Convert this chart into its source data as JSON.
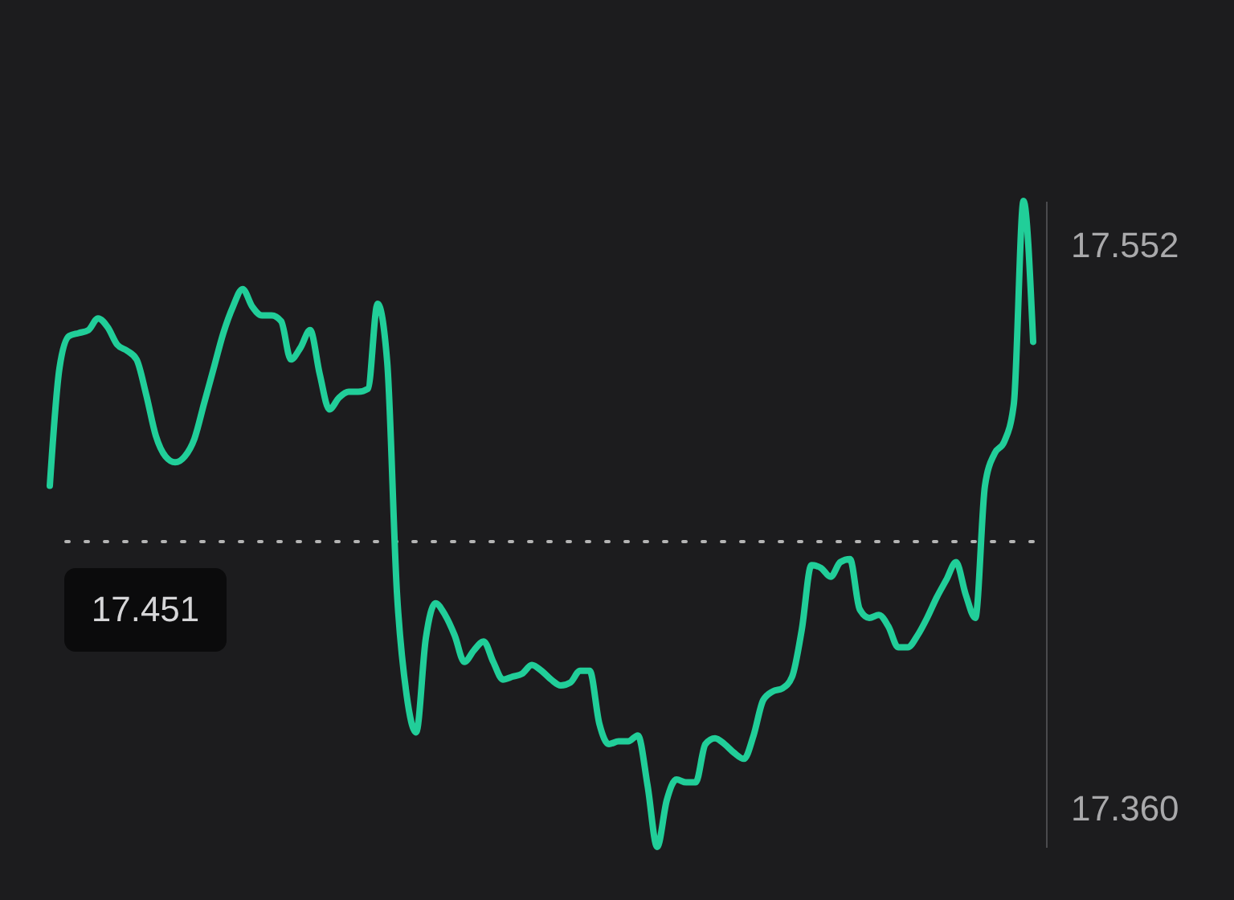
{
  "chart_data": {
    "type": "line",
    "categories": [
      null,
      null,
      null,
      null,
      null,
      null,
      null,
      null,
      null,
      null,
      null,
      null,
      null,
      null,
      null,
      null,
      null,
      null,
      null,
      null,
      null,
      null,
      null,
      null,
      null,
      null,
      null,
      null,
      null,
      null,
      null,
      null,
      null,
      null,
      null,
      null,
      null,
      null,
      null,
      null,
      null,
      null,
      null,
      null,
      null,
      null,
      null,
      null,
      null,
      null,
      null,
      null,
      null,
      null,
      null,
      null,
      null,
      null,
      null,
      null,
      null,
      null,
      null,
      null,
      null,
      null,
      null,
      null,
      null,
      null,
      null,
      null,
      null,
      null,
      null,
      null,
      null,
      null,
      null,
      null,
      null,
      null,
      null,
      null,
      null,
      null,
      null,
      null,
      null,
      null,
      null,
      null,
      null,
      null,
      null,
      null,
      null,
      null,
      null,
      null,
      null,
      null,
      null
    ],
    "series": [
      {
        "color": "#21ce99",
        "values": [
          17.47,
          17.51,
          17.521,
          17.522,
          17.523,
          17.527,
          17.524,
          17.518,
          17.516,
          17.513,
          17.501,
          17.487,
          17.48,
          17.478,
          17.48,
          17.486,
          17.498,
          17.51,
          17.522,
          17.531,
          17.537,
          17.531,
          17.528,
          17.528,
          17.526,
          17.513,
          17.517,
          17.523,
          17.508,
          17.496,
          17.5,
          17.502,
          17.502,
          17.503,
          17.532,
          17.512,
          17.434,
          17.399,
          17.386,
          17.418,
          17.43,
          17.426,
          17.419,
          17.41,
          17.414,
          17.417,
          17.41,
          17.404,
          17.405,
          17.406,
          17.409,
          17.407,
          17.404,
          17.402,
          17.403,
          17.407,
          17.407,
          17.389,
          17.382,
          17.383,
          17.383,
          17.385,
          17.368,
          17.347,
          17.363,
          17.37,
          17.369,
          17.369,
          17.382,
          17.384,
          17.382,
          17.379,
          17.377,
          17.385,
          17.397,
          17.4,
          17.401,
          17.405,
          17.421,
          17.443,
          17.442,
          17.439,
          17.444,
          17.445,
          17.428,
          17.425,
          17.426,
          17.422,
          17.415,
          17.415,
          17.419,
          17.425,
          17.432,
          17.438,
          17.444,
          17.433,
          17.425,
          17.47,
          17.481,
          17.485,
          17.498,
          17.567,
          17.519
        ]
      }
    ],
    "ylim": [
      17.347,
      17.567
    ],
    "yticks": [
      17.552,
      {
        "value": 17.36,
        "label": "17.360"
      }
    ],
    "ref_lines": [
      {
        "axis": "y",
        "value": 17.451,
        "label": "17.451",
        "color": "#b4b4b4",
        "line_style": "dotted"
      }
    ],
    "line_style": "solid"
  }
}
